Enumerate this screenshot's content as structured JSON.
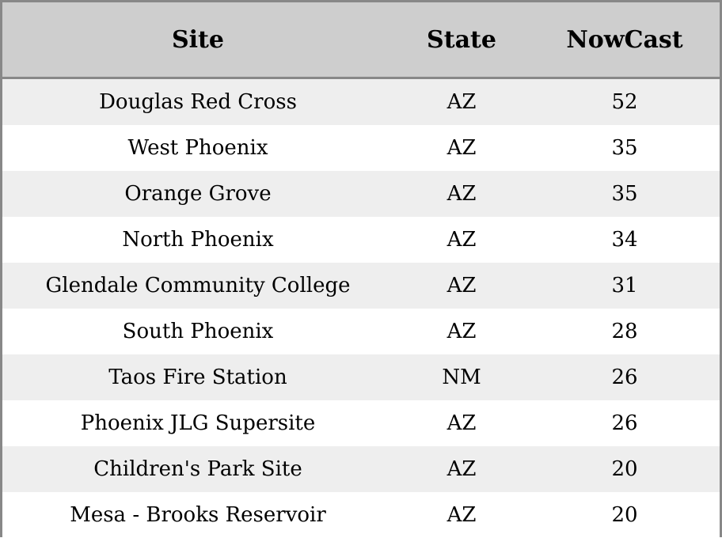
{
  "chart_data": {
    "type": "table",
    "columns": [
      "Site",
      "State",
      "NowCast"
    ],
    "rows": [
      {
        "site": "Douglas Red Cross",
        "state": "AZ",
        "nowcast": 52
      },
      {
        "site": "West Phoenix",
        "state": "AZ",
        "nowcast": 35
      },
      {
        "site": "Orange Grove",
        "state": "AZ",
        "nowcast": 35
      },
      {
        "site": "North Phoenix",
        "state": "AZ",
        "nowcast": 34
      },
      {
        "site": "Glendale Community College",
        "state": "AZ",
        "nowcast": 31
      },
      {
        "site": "South Phoenix",
        "state": "AZ",
        "nowcast": 28
      },
      {
        "site": "Taos Fire Station",
        "state": "NM",
        "nowcast": 26
      },
      {
        "site": "Phoenix JLG Supersite",
        "state": "AZ",
        "nowcast": 26
      },
      {
        "site": "Children's Park Site",
        "state": "AZ",
        "nowcast": 20
      },
      {
        "site": "Mesa - Brooks Reservoir",
        "state": "AZ",
        "nowcast": 20
      }
    ],
    "header_color": "#cecece",
    "stripe_color": "#eeeeee",
    "border_color": "#888888"
  }
}
